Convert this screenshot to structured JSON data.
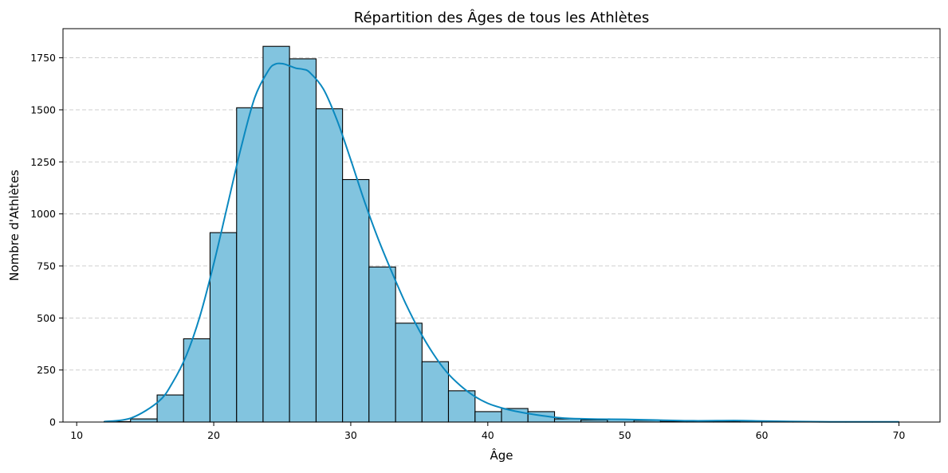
{
  "chart_data": {
    "type": "bar",
    "title": "Répartition des Âges de tous les Athlètes",
    "xlabel": "Âge",
    "ylabel": "Nombre d'Athlètes",
    "xlim": [
      9,
      73
    ],
    "ylim": [
      0,
      1890
    ],
    "xticks": [
      10,
      20,
      30,
      40,
      50,
      60,
      70
    ],
    "yticks": [
      0,
      250,
      500,
      750,
      1000,
      1250,
      1500,
      1750
    ],
    "grid": "y-dashed",
    "colors": {
      "bar_fill": "#82c4df",
      "bar_edge": "#000000",
      "kde_line": "#0a88bf",
      "grid": "#c8c8c8"
    },
    "bins": [
      {
        "start": 12.0,
        "end": 13.93,
        "count": 2
      },
      {
        "start": 13.93,
        "end": 15.87,
        "count": 15
      },
      {
        "start": 15.87,
        "end": 17.8,
        "count": 130
      },
      {
        "start": 17.8,
        "end": 19.73,
        "count": 400
      },
      {
        "start": 19.73,
        "end": 21.67,
        "count": 910
      },
      {
        "start": 21.67,
        "end": 23.6,
        "count": 1510
      },
      {
        "start": 23.6,
        "end": 25.53,
        "count": 1805
      },
      {
        "start": 25.53,
        "end": 27.47,
        "count": 1745
      },
      {
        "start": 27.47,
        "end": 29.4,
        "count": 1505
      },
      {
        "start": 29.4,
        "end": 31.33,
        "count": 1165
      },
      {
        "start": 31.33,
        "end": 33.27,
        "count": 745
      },
      {
        "start": 33.27,
        "end": 35.2,
        "count": 475
      },
      {
        "start": 35.2,
        "end": 37.13,
        "count": 290
      },
      {
        "start": 37.13,
        "end": 39.07,
        "count": 150
      },
      {
        "start": 39.07,
        "end": 41.0,
        "count": 50
      },
      {
        "start": 41.0,
        "end": 42.93,
        "count": 65
      },
      {
        "start": 42.93,
        "end": 44.87,
        "count": 50
      },
      {
        "start": 44.87,
        "end": 46.8,
        "count": 15
      },
      {
        "start": 46.8,
        "end": 48.73,
        "count": 10
      },
      {
        "start": 48.73,
        "end": 50.67,
        "count": 12
      },
      {
        "start": 50.67,
        "end": 52.6,
        "count": 8
      },
      {
        "start": 52.6,
        "end": 54.53,
        "count": 3
      },
      {
        "start": 54.53,
        "end": 56.47,
        "count": 3
      },
      {
        "start": 56.47,
        "end": 58.4,
        "count": 3
      },
      {
        "start": 58.4,
        "end": 60.33,
        "count": 5
      },
      {
        "start": 60.33,
        "end": 62.27,
        "count": 3
      },
      {
        "start": 62.27,
        "end": 64.2,
        "count": 1
      },
      {
        "start": 64.2,
        "end": 66.13,
        "count": 1
      },
      {
        "start": 66.13,
        "end": 68.07,
        "count": 1
      },
      {
        "start": 68.07,
        "end": 70.0,
        "count": 1
      }
    ],
    "kde": {
      "x": [
        12,
        14,
        16,
        17,
        18,
        19,
        20,
        21,
        22,
        23,
        24,
        24.5,
        25,
        25.5,
        26,
        26.5,
        27,
        28,
        29,
        30,
        31,
        32,
        33,
        34,
        35,
        36,
        37,
        38,
        39,
        40,
        41,
        42,
        43,
        44,
        45,
        46,
        48,
        50,
        52,
        55,
        58,
        60,
        62,
        65,
        70
      ],
      "y": [
        2,
        20,
        100,
        190,
        320,
        510,
        760,
        1040,
        1320,
        1560,
        1690,
        1720,
        1722,
        1712,
        1700,
        1695,
        1680,
        1600,
        1450,
        1260,
        1060,
        880,
        720,
        570,
        440,
        330,
        240,
        175,
        125,
        90,
        68,
        52,
        40,
        30,
        22,
        17,
        14,
        13,
        10,
        6,
        7,
        5,
        3,
        1,
        1
      ]
    }
  }
}
